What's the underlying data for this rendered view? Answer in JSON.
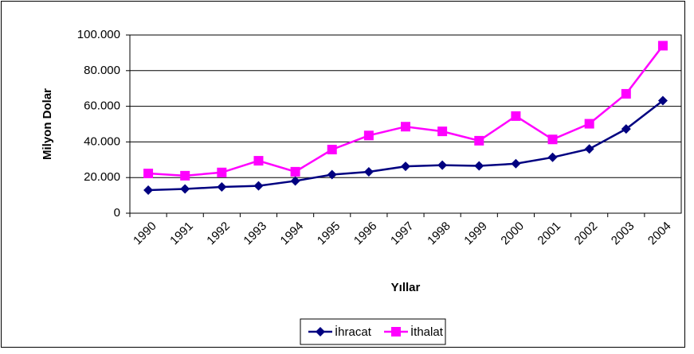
{
  "chart_data": {
    "type": "line",
    "x_label": "Yıllar",
    "y_label": "Milyon Dolar",
    "categories": [
      "1990",
      "1991",
      "1992",
      "1993",
      "1994",
      "1995",
      "1996",
      "1997",
      "1998",
      "1999",
      "2000",
      "2001",
      "2002",
      "2003",
      "2004"
    ],
    "series": [
      {
        "name": "İhracat",
        "color": "#000080",
        "marker": "diamond",
        "values": [
          12959,
          13594,
          14715,
          15345,
          18106,
          21637,
          23224,
          26261,
          26974,
          26588,
          27775,
          31334,
          36059,
          47253,
          63167
        ]
      },
      {
        "name": "İthalat",
        "color": "#ff00ff",
        "marker": "square",
        "values": [
          22302,
          21047,
          22871,
          29428,
          23270,
          35709,
          43627,
          48559,
          45921,
          40671,
          54503,
          41399,
          50200,
          67000,
          94000
        ]
      }
    ],
    "ylim": [
      0,
      100000
    ],
    "yticks": [
      0,
      {
        "value": 20000,
        "label": "20.000"
      },
      {
        "value": 40000,
        "label": "40.000"
      },
      {
        "value": 60000,
        "label": "60.000"
      },
      {
        "value": 80000,
        "label": "80.000"
      },
      {
        "value": 100000,
        "label": "100.000"
      }
    ],
    "grid": true,
    "legend": "bottom"
  }
}
